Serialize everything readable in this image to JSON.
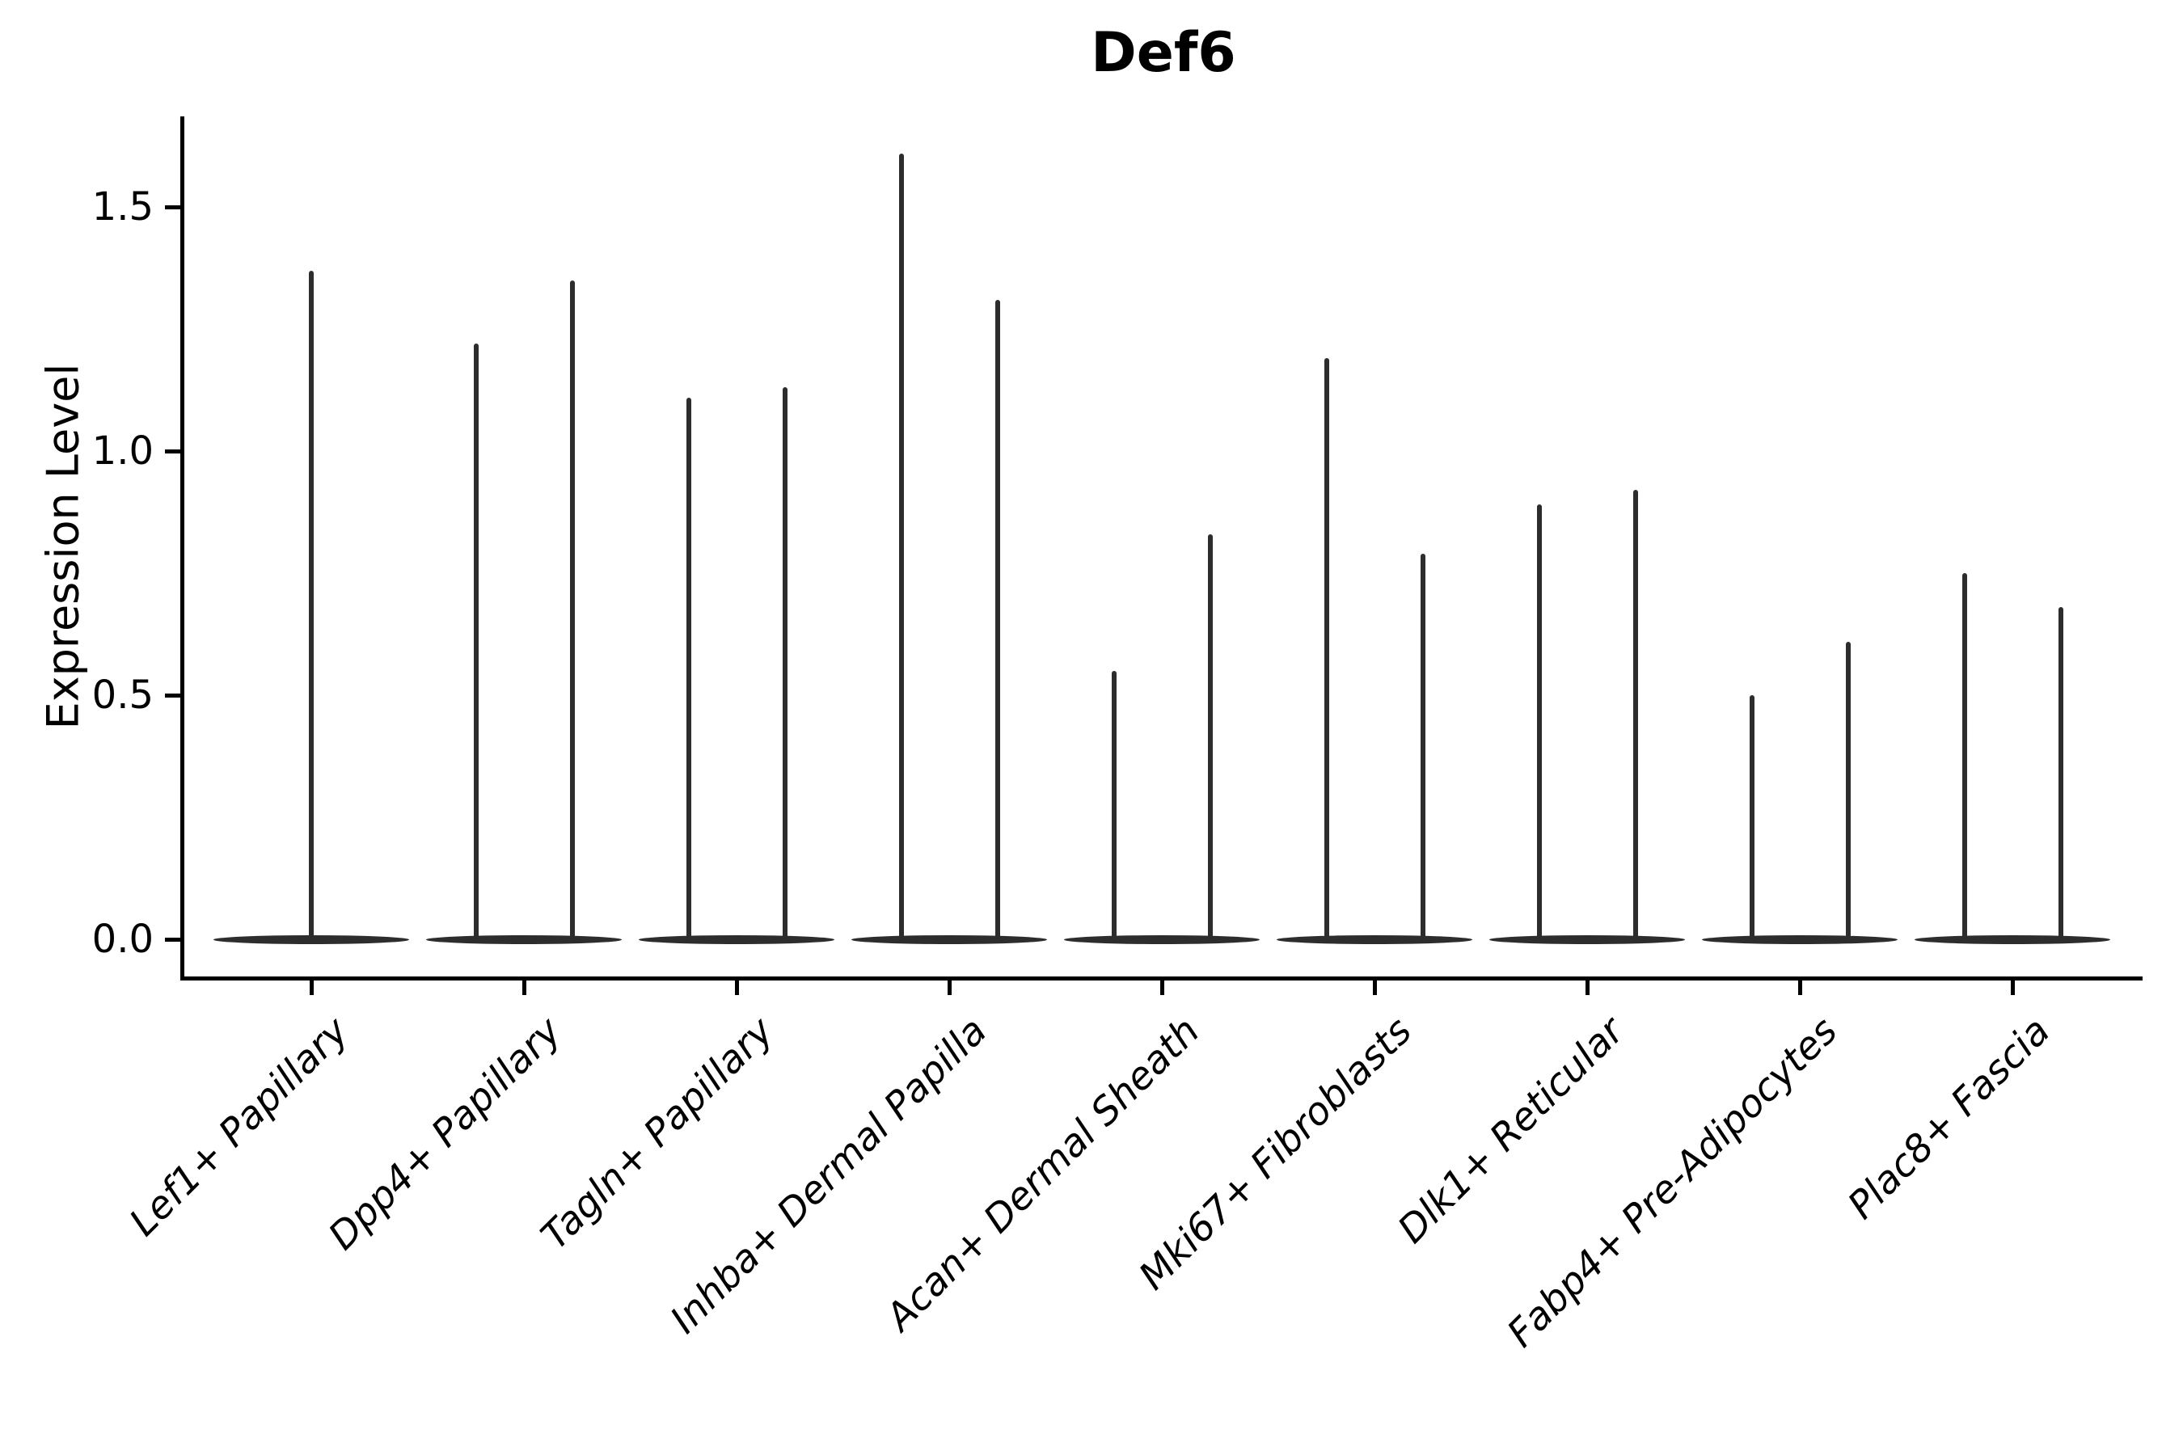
{
  "chart_data": {
    "type": "violin",
    "title": "Def6",
    "xlabel": "",
    "ylabel": "Expression Level",
    "ylim": [
      -0.08,
      1.69
    ],
    "grid": false,
    "yticks": [
      {
        "value": 0.0,
        "label": "0.0"
      },
      {
        "value": 0.5,
        "label": "0.5"
      },
      {
        "value": 1.0,
        "label": "1.0"
      },
      {
        "value": 1.5,
        "label": "1.5"
      }
    ],
    "categories": [
      "Lef1+ Papillary",
      "Dpp4+ Papillary",
      "Tagln+ Papillary",
      "Inhba+ Dermal Papilla",
      "Acan+ Dermal Sheath",
      "Mki67+ Fibroblasts",
      "Dlk1+ Reticular",
      "Fabp4+ Pre-Adipocytes",
      "Plac8+ Fascia"
    ],
    "series": [
      {
        "category": "Lef1+ Papillary",
        "violin_max_values": [
          1.37
        ]
      },
      {
        "category": "Dpp4+ Papillary",
        "violin_max_values": [
          1.22,
          1.35
        ]
      },
      {
        "category": "Tagln+ Papillary",
        "violin_max_values": [
          1.11,
          1.13
        ]
      },
      {
        "category": "Inhba+ Dermal Papilla",
        "violin_max_values": [
          1.61,
          1.31
        ]
      },
      {
        "category": "Acan+ Dermal Sheath",
        "violin_max_values": [
          0.55,
          0.83
        ]
      },
      {
        "category": "Mki67+ Fibroblasts",
        "violin_max_values": [
          1.19,
          0.79
        ]
      },
      {
        "category": "Dlk1+ Reticular",
        "violin_max_values": [
          0.89,
          0.92
        ]
      },
      {
        "category": "Fabp4+ Pre-Adipocytes",
        "violin_max_values": [
          0.5,
          0.61
        ]
      },
      {
        "category": "Plac8+ Fascia",
        "violin_max_values": [
          0.75,
          0.68
        ]
      }
    ],
    "bulk_value": 0.0,
    "colors": {
      "violin": "#2d2d2d",
      "axes": "#000000",
      "text": "#000000",
      "background": "#ffffff"
    },
    "legend": null
  }
}
